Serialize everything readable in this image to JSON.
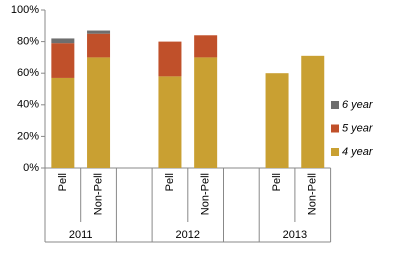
{
  "chart_data": {
    "type": "stacked_bar",
    "categories": [
      "Pell",
      "Non-Pell",
      "Pell",
      "Non-Pell",
      "Pell",
      "Non-Pell"
    ],
    "groups": [
      "2011",
      "2012",
      "2013"
    ],
    "series": [
      {
        "name": "4 year",
        "color": "#c9a032",
        "values": [
          57,
          70,
          58,
          70,
          60,
          71
        ]
      },
      {
        "name": "5 year",
        "color": "#c0502a",
        "values": [
          22,
          15,
          22,
          14,
          0,
          0
        ]
      },
      {
        "name": "6 year",
        "color": "#6e6e6e",
        "values": [
          3,
          2,
          0,
          0,
          0,
          0
        ]
      }
    ],
    "ylim": [
      0,
      100
    ],
    "yticks": [
      {
        "value": 0,
        "label": "0%"
      },
      {
        "value": 20,
        "label": "20%"
      },
      {
        "value": 40,
        "label": "40%"
      },
      {
        "value": 60,
        "label": "60%"
      },
      {
        "value": 80,
        "label": "80%"
      },
      {
        "value": 100,
        "label": "100%"
      }
    ],
    "grid": false,
    "legend": "right"
  }
}
